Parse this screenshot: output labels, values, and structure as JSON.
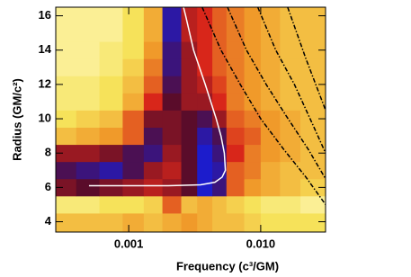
{
  "chart_data": {
    "type": "heatmap",
    "x_label": "Frequency (c³/GM)",
    "y_label": "Radius (GM/c²)",
    "xscale": "log",
    "xlim": [
      0.00028,
      0.031
    ],
    "ylim": [
      3.4,
      16.5
    ],
    "xticks": [
      {
        "value": 0.001,
        "label": "0.001"
      },
      {
        "value": 0.01,
        "label": "0.010"
      }
    ],
    "yticks": [
      4,
      6,
      8,
      10,
      12,
      14,
      16
    ],
    "colorscale": [
      "#fffcd0",
      "#f6e25a",
      "#f09a2a",
      "#d8261a",
      "#5a0c2a",
      "#1c1ccc"
    ],
    "x_edges": [
      0.00028,
      0.0004,
      0.0006,
      0.0009,
      0.0013,
      0.0018,
      0.0025,
      0.0033,
      0.0043,
      0.0055,
      0.0075,
      0.01,
      0.014,
      0.02,
      0.031
    ],
    "y_edges": [
      3.4,
      4.5,
      5.5,
      6.5,
      7.5,
      8.5,
      9.5,
      10.5,
      11.5,
      12.5,
      13.5,
      14.5,
      15.5,
      16.5
    ],
    "z": [
      [
        0.3,
        0.3,
        0.3,
        0.35,
        0.3,
        0.35,
        0.4,
        0.35,
        0.3,
        0.3,
        0.25,
        0.2,
        0.2,
        0.2
      ],
      [
        0.15,
        0.15,
        0.2,
        0.2,
        0.25,
        0.5,
        0.3,
        0.35,
        0.3,
        0.25,
        0.2,
        0.15,
        0.15,
        0.1
      ],
      [
        0.75,
        0.8,
        0.75,
        0.7,
        0.65,
        0.7,
        0.8,
        1.0,
        0.9,
        0.5,
        0.4,
        0.35,
        0.3,
        0.25
      ],
      [
        0.85,
        0.9,
        0.95,
        0.85,
        0.7,
        0.65,
        0.8,
        1.0,
        0.95,
        0.5,
        0.45,
        0.35,
        0.3,
        0.3
      ],
      [
        0.7,
        0.7,
        0.75,
        0.85,
        0.9,
        0.7,
        0.8,
        1.0,
        0.9,
        0.6,
        0.45,
        0.4,
        0.35,
        0.3
      ],
      [
        0.3,
        0.35,
        0.4,
        0.5,
        0.85,
        0.75,
        0.8,
        0.95,
        0.85,
        0.55,
        0.5,
        0.4,
        0.35,
        0.3
      ],
      [
        0.2,
        0.25,
        0.3,
        0.5,
        0.75,
        0.75,
        0.8,
        0.85,
        0.7,
        0.5,
        0.45,
        0.4,
        0.35,
        0.3
      ],
      [
        0.15,
        0.15,
        0.2,
        0.35,
        0.6,
        0.8,
        0.7,
        0.7,
        0.6,
        0.45,
        0.4,
        0.35,
        0.3,
        0.3
      ],
      [
        0.15,
        0.15,
        0.2,
        0.3,
        0.5,
        0.85,
        0.7,
        0.65,
        0.55,
        0.45,
        0.4,
        0.35,
        0.3,
        0.3
      ],
      [
        0.1,
        0.1,
        0.15,
        0.25,
        0.45,
        0.9,
        0.7,
        0.6,
        0.5,
        0.45,
        0.4,
        0.35,
        0.3,
        0.3
      ],
      [
        0.1,
        0.1,
        0.15,
        0.2,
        0.4,
        0.9,
        0.7,
        0.6,
        0.5,
        0.45,
        0.4,
        0.35,
        0.3,
        0.3
      ],
      [
        0.1,
        0.1,
        0.1,
        0.2,
        0.35,
        0.95,
        0.65,
        0.6,
        0.5,
        0.45,
        0.4,
        0.35,
        0.3,
        0.3
      ],
      [
        0.1,
        0.1,
        0.1,
        0.2,
        0.35,
        0.95,
        0.65,
        0.6,
        0.5,
        0.45,
        0.4,
        0.35,
        0.3,
        0.3
      ]
    ],
    "series": [
      {
        "color": "#ffffff",
        "style": "solid",
        "x": [
          0.0005,
          0.001,
          0.002,
          0.0035,
          0.0045,
          0.0051,
          0.0054,
          0.0053,
          0.005,
          0.0046,
          0.0038,
          0.0031,
          0.0027,
          0.0026
        ],
        "values": [
          6.1,
          6.1,
          6.1,
          6.15,
          6.3,
          6.6,
          7,
          8,
          9,
          10,
          12,
          14,
          16,
          16.5
        ]
      },
      {
        "color": "#000000",
        "style": "dashdot",
        "x": [
          0.0036,
          0.005,
          0.007,
          0.01,
          0.015,
          0.022,
          0.031
        ],
        "values": [
          16.5,
          14,
          12,
          10,
          8.2,
          6.6,
          5.0
        ]
      },
      {
        "color": "#000000",
        "style": "dashdot",
        "x": [
          0.0056,
          0.0078,
          0.011,
          0.0155,
          0.023,
          0.031
        ],
        "values": [
          16.5,
          14,
          12,
          10.2,
          8.2,
          6.5
        ]
      },
      {
        "color": "#000000",
        "style": "dashdot",
        "x": [
          0.0095,
          0.013,
          0.018,
          0.025,
          0.031
        ],
        "values": [
          16.5,
          14,
          12,
          9.6,
          8
        ]
      },
      {
        "color": "#000000",
        "style": "dashdot",
        "x": [
          0.016,
          0.022,
          0.031
        ],
        "values": [
          16.5,
          13.5,
          10.5
        ]
      }
    ]
  }
}
